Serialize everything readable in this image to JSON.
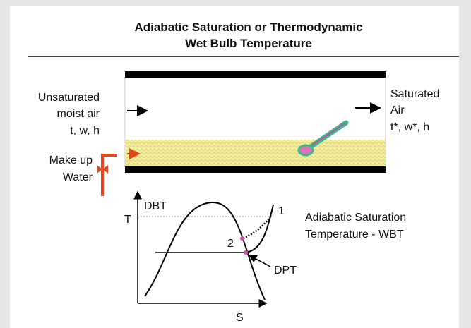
{
  "title": {
    "line1": "Adiabatic Saturation or Thermodynamic",
    "line2": "Wet Bulb Temperature"
  },
  "inlet": {
    "lines": [
      "Unsaturated",
      "moist air",
      "t, w, h"
    ]
  },
  "makeup": {
    "lines": [
      "Make up",
      "Water"
    ]
  },
  "outlet": {
    "lines": [
      "Saturated",
      "Air",
      "t*, w*, h"
    ]
  },
  "diagram": {
    "y_axis": "T",
    "dbt": "DBT",
    "point1": "1",
    "point2": "2",
    "wbt_label": [
      "Adiabatic Saturation",
      "Temperature - WBT"
    ],
    "dpt": "DPT",
    "x_axis": "S"
  }
}
